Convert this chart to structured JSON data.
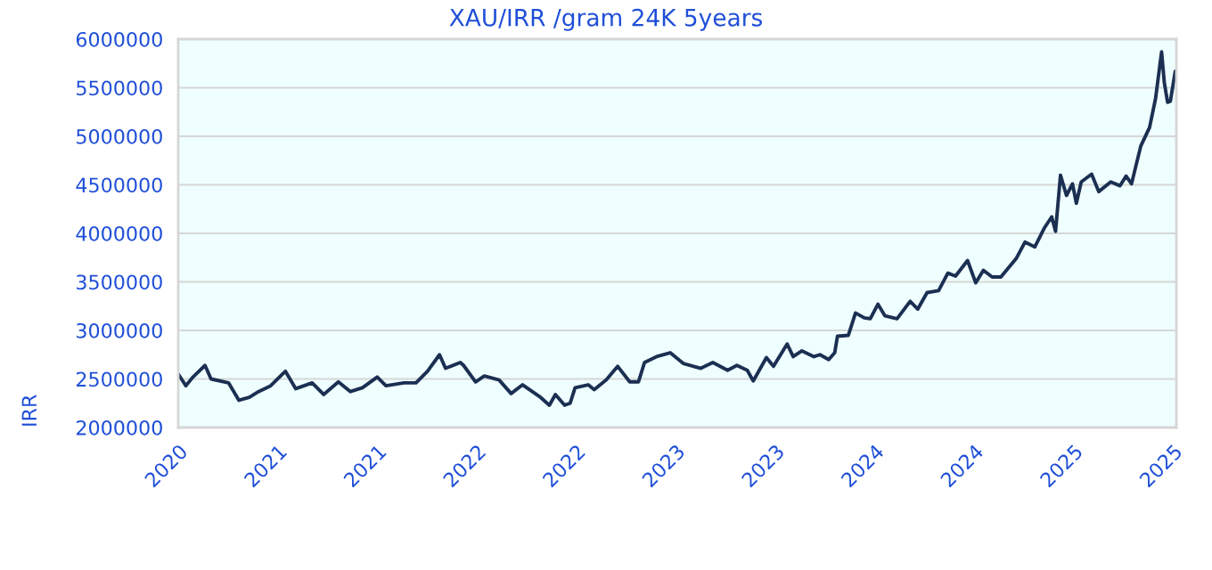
{
  "chart_data": {
    "type": "line",
    "title": "XAU/IRR /gram 24K 5years",
    "ylabel": "IRR",
    "x": [
      "2020-11-13",
      "2020-11-27",
      "2020-12-10",
      "2021-01-01",
      "2021-01-12",
      "2021-02-13",
      "2021-03-04",
      "2021-03-23",
      "2021-04-09",
      "2021-05-01",
      "2021-05-28",
      "2021-06-16",
      "2021-07-16",
      "2021-08-06",
      "2021-09-02",
      "2021-09-24",
      "2021-10-16",
      "2021-11-12",
      "2021-11-28",
      "2021-12-31",
      "2022-01-22",
      "2022-02-12",
      "2022-03-06",
      "2022-03-17",
      "2022-04-13",
      "2022-04-19",
      "2022-05-11",
      "2022-05-27",
      "2022-06-23",
      "2022-07-15",
      "2022-08-05",
      "2022-09-07",
      "2022-09-23",
      "2022-10-04",
      "2022-10-21",
      "2022-10-31",
      "2022-11-09",
      "2022-12-03",
      "2022-12-14",
      "2023-01-05",
      "2023-01-26",
      "2023-02-17",
      "2023-03-05",
      "2023-03-16",
      "2023-04-07",
      "2023-05-02",
      "2023-05-26",
      "2023-06-27",
      "2023-07-19",
      "2023-08-15",
      "2023-09-01",
      "2023-09-20",
      "2023-10-01",
      "2023-10-25",
      "2023-11-07",
      "2023-12-02",
      "2023-12-13",
      "2023-12-29",
      "2024-01-20",
      "2024-01-31",
      "2024-02-16",
      "2024-02-27",
      "2024-03-03",
      "2024-03-23",
      "2024-04-05",
      "2024-04-21",
      "2024-05-02",
      "2024-05-16",
      "2024-05-29",
      "2024-06-20",
      "2024-07-14",
      "2024-07-28",
      "2024-08-14",
      "2024-09-04",
      "2024-09-21",
      "2024-10-05",
      "2024-10-27",
      "2024-11-11",
      "2024-11-25",
      "2024-12-11",
      "2024-12-27",
      "2025-01-24",
      "2025-02-09",
      "2025-02-27",
      "2025-03-17",
      "2025-03-30",
      "2025-04-06",
      "2025-04-15",
      "2025-04-26",
      "2025-05-07",
      "2025-05-14",
      "2025-05-23",
      "2025-06-11",
      "2025-06-24",
      "2025-07-16",
      "2025-08-02",
      "2025-08-13",
      "2025-08-23",
      "2025-09-09",
      "2025-09-25",
      "2025-10-06",
      "2025-10-17",
      "2025-10-22",
      "2025-10-28",
      "2025-11-02",
      "2025-11-11"
    ],
    "series": [
      {
        "color": "#1b2f52",
        "values": [
          2550000,
          2430000,
          2520000,
          2640000,
          2500000,
          2460000,
          2280000,
          2310000,
          2370000,
          2430000,
          2580000,
          2400000,
          2460000,
          2340000,
          2470000,
          2370000,
          2410000,
          2520000,
          2430000,
          2460000,
          2460000,
          2580000,
          2750000,
          2610000,
          2670000,
          2640000,
          2470000,
          2530000,
          2490000,
          2350000,
          2440000,
          2310000,
          2230000,
          2340000,
          2230000,
          2250000,
          2410000,
          2440000,
          2390000,
          2490000,
          2630000,
          2470000,
          2470000,
          2670000,
          2730000,
          2770000,
          2660000,
          2610000,
          2670000,
          2590000,
          2640000,
          2590000,
          2480000,
          2720000,
          2630000,
          2860000,
          2730000,
          2790000,
          2730000,
          2750000,
          2700000,
          2770000,
          2940000,
          2950000,
          3180000,
          3130000,
          3120000,
          3270000,
          3150000,
          3120000,
          3300000,
          3220000,
          3390000,
          3410000,
          3590000,
          3560000,
          3720000,
          3490000,
          3620000,
          3550000,
          3550000,
          3740000,
          3910000,
          3860000,
          4060000,
          4170000,
          4020000,
          4600000,
          4390000,
          4510000,
          4310000,
          4530000,
          4610000,
          4430000,
          4530000,
          4490000,
          4590000,
          4510000,
          4900000,
          5090000,
          5390000,
          5870000,
          5550000,
          5350000,
          5360000,
          5670000
        ]
      }
    ],
    "xlim": [
      "2020-11-13",
      "2025-11-13"
    ],
    "xticks": [
      {
        "value": "2020-11-13",
        "label": "2020"
      },
      {
        "value": "2021-05-14",
        "label": "2021"
      },
      {
        "value": "2021-11-12",
        "label": "2021"
      },
      {
        "value": "2022-05-13",
        "label": "2022"
      },
      {
        "value": "2022-11-11",
        "label": "2022"
      },
      {
        "value": "2023-05-12",
        "label": "2023"
      },
      {
        "value": "2023-11-10",
        "label": "2023"
      },
      {
        "value": "2024-05-10",
        "label": "2024"
      },
      {
        "value": "2024-11-08",
        "label": "2024"
      },
      {
        "value": "2025-05-09",
        "label": "2025"
      },
      {
        "value": "2025-11-07",
        "label": "2025"
      }
    ],
    "ylim": [
      2000000,
      6000000
    ],
    "yticks": [
      2000000,
      2500000,
      3000000,
      3500000,
      4000000,
      4500000,
      5000000,
      5500000,
      6000000
    ],
    "grid": "y",
    "line_style": "solid"
  }
}
